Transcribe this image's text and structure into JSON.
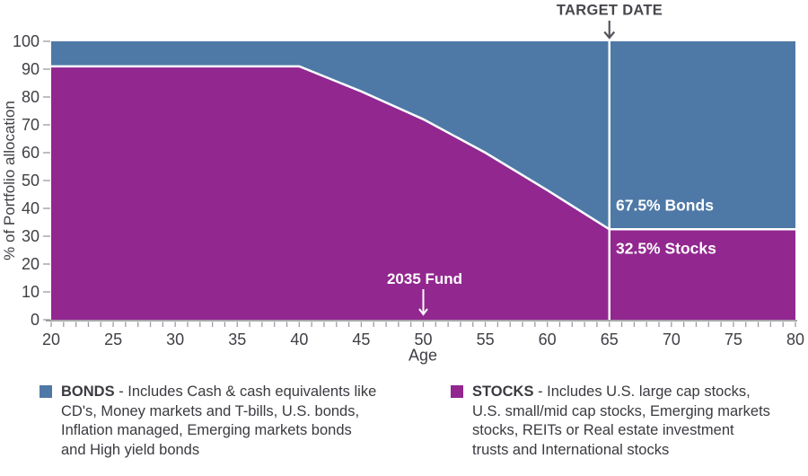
{
  "colors": {
    "bonds_blue": "#4e79a6",
    "stocks_purple": "#92278f",
    "axis_text": "#3f3f46",
    "tick_gray": "#9a9aa0",
    "baseline_gray": "#8a8a90",
    "arrow_gray": "#55555c",
    "white": "#ffffff"
  },
  "axes": {
    "y_title": "% of Portfolio allocation",
    "x_title": "Age"
  },
  "annotations": {
    "target_date_label": "TARGET DATE",
    "fund_label": "2035 Fund",
    "bonds_share_label": "67.5% Bonds",
    "stocks_share_label": "32.5% Stocks"
  },
  "legend": {
    "bonds": {
      "name": "BONDS",
      "desc": "- Includes Cash & cash equivalents like\nCD's, Money markets and T-bills, U.S. bonds,\nInflation managed, Emerging markets bonds\nand High yield bonds"
    },
    "stocks": {
      "name": "STOCKS",
      "desc": "- Includes U.S. large cap stocks,\nU.S. small/mid cap stocks, Emerging markets\nstocks, REITs or Real estate investment\ntrusts and International stocks"
    }
  },
  "chart_data": {
    "type": "area",
    "stacked": true,
    "title": "",
    "xlabel": "Age",
    "ylabel": "% of Portfolio allocation",
    "xlim": [
      20,
      80
    ],
    "ylim": [
      0,
      100
    ],
    "grid": false,
    "x_major_ticks": [
      20,
      25,
      30,
      35,
      40,
      45,
      50,
      55,
      60,
      65,
      70,
      75,
      80
    ],
    "x_minor_tick_step": 1,
    "y_ticks": [
      0,
      10,
      20,
      30,
      40,
      50,
      60,
      70,
      80,
      90,
      100
    ],
    "series": [
      {
        "name": "Stocks",
        "color": "#92278f",
        "points": [
          [
            20,
            91
          ],
          [
            40,
            91
          ],
          [
            45,
            82
          ],
          [
            50,
            72
          ],
          [
            55,
            60
          ],
          [
            60,
            46.5
          ],
          [
            65,
            32.5
          ],
          [
            80,
            32.5
          ]
        ]
      },
      {
        "name": "Bonds",
        "color": "#4e79a6",
        "note": "stacked remainder up to 100%",
        "value_at_target": 67.5
      }
    ],
    "annotations": [
      {
        "label": "TARGET DATE",
        "age": 65,
        "position": "above-plot"
      },
      {
        "label": "2035 Fund",
        "age": 50,
        "y": 14
      },
      {
        "label": "67.5% Bonds",
        "age": 65.5,
        "y": 40
      },
      {
        "label": "32.5% Stocks",
        "age": 65.5,
        "y": 25
      }
    ]
  }
}
